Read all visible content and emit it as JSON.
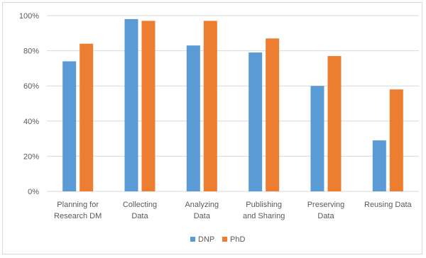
{
  "chart_data": {
    "type": "bar",
    "title": "",
    "xlabel": "",
    "ylabel": "",
    "categories": [
      [
        "Planning for",
        "Research DM"
      ],
      [
        "Collecting",
        "Data"
      ],
      [
        "Analyzing",
        "Data"
      ],
      [
        "Publishing",
        "and Sharing"
      ],
      [
        "Preserving",
        "Data"
      ],
      [
        "Reusing Data"
      ]
    ],
    "series": [
      {
        "name": "DNP",
        "color": "#5b9bd5",
        "values": [
          74,
          98,
          83,
          79,
          60,
          29
        ]
      },
      {
        "name": "PhD",
        "color": "#ed7d31",
        "values": [
          84,
          97,
          97,
          87,
          77,
          58
        ]
      }
    ],
    "ylim": [
      0,
      100
    ],
    "yticks": [
      0,
      20,
      40,
      60,
      80,
      100
    ],
    "ytick_labels": [
      "0%",
      "20%",
      "40%",
      "60%",
      "80%",
      "100%"
    ],
    "grid": true,
    "gridline_color": "#d9d9d9",
    "legend_position": "bottom"
  }
}
